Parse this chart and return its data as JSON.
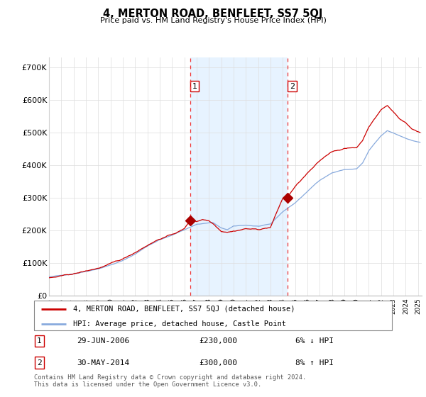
{
  "title": "4, MERTON ROAD, BENFLEET, SS7 5QJ",
  "subtitle": "Price paid vs. HM Land Registry's House Price Index (HPI)",
  "legend_line1": "4, MERTON ROAD, BENFLEET, SS7 5QJ (detached house)",
  "legend_line2": "HPI: Average price, detached house, Castle Point",
  "sale1_date": 2006.49,
  "sale1_price": 230000,
  "sale1_label": "29-JUN-2006",
  "sale1_pct": "6% ↓ HPI",
  "sale2_date": 2014.41,
  "sale2_price": 300000,
  "sale2_label": "30-MAY-2014",
  "sale2_pct": "8% ↑ HPI",
  "xlim": [
    1995,
    2025.3
  ],
  "ylim": [
    0,
    730000
  ],
  "yticks": [
    0,
    100000,
    200000,
    300000,
    400000,
    500000,
    600000,
    700000
  ],
  "ytick_labels": [
    "£0",
    "£100K",
    "£200K",
    "£300K",
    "£400K",
    "£500K",
    "£600K",
    "£700K"
  ],
  "background_color": "#ffffff",
  "grid_color": "#dddddd",
  "shade_color": "#ddeeff",
  "line_color_property": "#cc0000",
  "line_color_hpi": "#88aadd",
  "marker_color": "#aa0000",
  "vline_color": "#ee3333",
  "footer": "Contains HM Land Registry data © Crown copyright and database right 2024.\nThis data is licensed under the Open Government Licence v3.0."
}
